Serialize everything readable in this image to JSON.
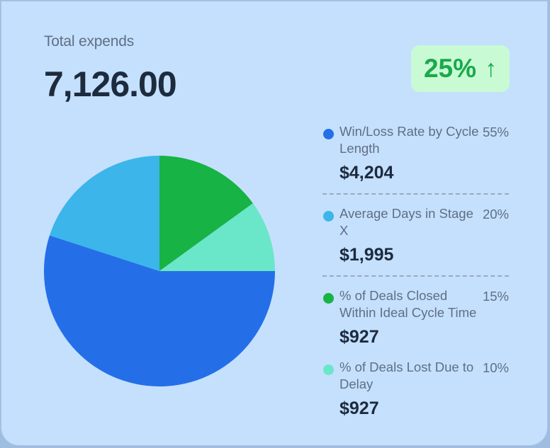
{
  "card": {
    "title": "Total expends",
    "total": "7,126.00",
    "badge": {
      "value": "25%",
      "arrow": "↑",
      "bg": "#c8fbd4",
      "color": "#1ba94c"
    }
  },
  "legend": [
    {
      "label": "Win/Loss Rate by Cycle Length",
      "percent": "55%",
      "amount": "$4,204",
      "color": "#246fe8"
    },
    {
      "label": "Average Days in Stage X",
      "percent": "20%",
      "amount": "$1,995",
      "color": "#3bb5ea"
    },
    {
      "label": "% of Deals Closed Within Ideal Cycle Time",
      "percent": "15%",
      "amount": "$927",
      "color": "#17b345"
    },
    {
      "label": "% of Deals Lost Due to Delay",
      "percent": "10%",
      "amount": "$927",
      "color": "#6ae6c9"
    }
  ],
  "chart_data": {
    "type": "pie",
    "title": "Total expends",
    "total": 7126.0,
    "categories": [
      "Win/Loss Rate by Cycle Length",
      "Average Days in Stage X",
      "% of Deals Closed Within Ideal Cycle Time",
      "% of Deals Lost Due to Delay"
    ],
    "values": [
      55,
      20,
      15,
      10
    ],
    "amounts": [
      4204,
      1995,
      927,
      927
    ],
    "colors": [
      "#246fe8",
      "#3bb5ea",
      "#17b345",
      "#6ae6c9"
    ],
    "start_angle": "12 o'clock, clockwise order: 15%, 10%, 55%, 20%",
    "legend_position": "right",
    "change_badge": "25% up"
  }
}
